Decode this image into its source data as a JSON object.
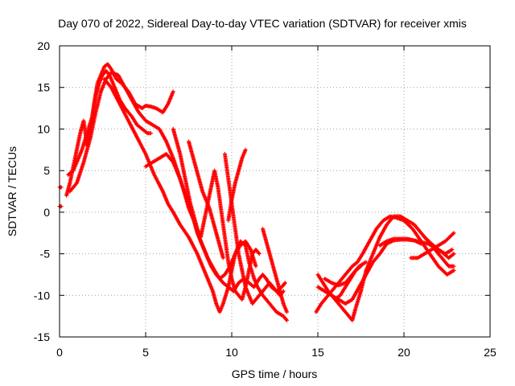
{
  "chart_data": {
    "type": "scatter",
    "title": "Day 070 of 2022, Sidereal Day-to-day VTEC variation (SDTVAR) for receiver xmis",
    "xlabel": "GPS time / hours",
    "ylabel": "SDTVAR / TECUs",
    "xlim": [
      0,
      25
    ],
    "ylim": [
      -15,
      20
    ],
    "xticks": [
      0,
      5,
      10,
      15,
      20,
      25
    ],
    "yticks": [
      -15,
      -10,
      -5,
      0,
      5,
      10,
      15,
      20
    ],
    "grid": true,
    "marker": "+",
    "color": "#ff0000",
    "series": [
      {
        "x": [
          0.0,
          0.1
        ],
        "y": [
          3.0,
          3.0
        ]
      },
      {
        "x": [
          0.0,
          0.1
        ],
        "y": [
          0.7,
          0.7
        ]
      },
      {
        "x": [
          0.4,
          0.6,
          0.8,
          1.0,
          1.2,
          1.4,
          1.6,
          1.8,
          2.0,
          2.2,
          2.4,
          2.6,
          2.8,
          3.0,
          3.3,
          3.6,
          4.0,
          4.4,
          4.8,
          5.0,
          5.3,
          5.6,
          6.0,
          6.3,
          6.6
        ],
        "y": [
          2.0,
          3.5,
          5.5,
          7.5,
          9.5,
          11.0,
          8.0,
          10.0,
          13.0,
          15.5,
          16.5,
          17.5,
          17.8,
          17.2,
          16.0,
          15.5,
          14.5,
          13.0,
          12.5,
          12.8,
          12.7,
          12.5,
          12.0,
          13.0,
          14.5
        ]
      },
      {
        "x": [
          0.5,
          0.8,
          1.0,
          1.3,
          1.6,
          1.9,
          2.1,
          2.3,
          2.5,
          2.7,
          2.9,
          3.2,
          3.5,
          3.8,
          4.2,
          4.5,
          4.8,
          5.1,
          5.3
        ],
        "y": [
          4.5,
          5.0,
          6.0,
          7.5,
          9.5,
          11.5,
          14.0,
          15.5,
          16.5,
          17.0,
          16.5,
          15.0,
          13.5,
          12.5,
          11.5,
          10.5,
          10.0,
          9.5,
          9.5
        ]
      },
      {
        "x": [
          0.6,
          1.0,
          1.4,
          1.8,
          2.1,
          2.4,
          2.7,
          3.0,
          3.4,
          3.8,
          4.2,
          4.6,
          5.0,
          5.4,
          5.8,
          6.2,
          6.6,
          7.0,
          7.3,
          7.5,
          7.8,
          8.0,
          8.3,
          8.6,
          9.0,
          9.3,
          9.5,
          9.8,
          10.1,
          10.4,
          10.7,
          11.0,
          11.3,
          11.6,
          11.8,
          12.0,
          12.3,
          12.6,
          12.9,
          13.1
        ],
        "y": [
          2.5,
          3.5,
          6.0,
          9.0,
          12.0,
          14.5,
          16.0,
          16.8,
          16.5,
          15.0,
          13.5,
          12.0,
          11.0,
          10.5,
          10.0,
          8.5,
          6.5,
          4.0,
          2.0,
          0.5,
          -1.0,
          -2.5,
          -4.0,
          -5.5,
          -7.0,
          -8.0,
          -8.5,
          -9.0,
          -9.5,
          -8.5,
          -8.0,
          -8.5,
          -9.0,
          -8.0,
          -7.5,
          -8.0,
          -9.0,
          -9.5,
          -9.0,
          -8.5
        ]
      },
      {
        "x": [
          2.6,
          3.0,
          3.5,
          4.0,
          4.5,
          5.0,
          5.5,
          6.0,
          6.3,
          6.6,
          7.0,
          7.5,
          8.0,
          8.3,
          8.6,
          8.9,
          9.1,
          9.3,
          9.5,
          9.8,
          10.0,
          10.2,
          10.5,
          10.8,
          11.0,
          11.3,
          11.5,
          11.8,
          12.2,
          12.6,
          13.0,
          13.2
        ],
        "y": [
          16.0,
          15.0,
          13.0,
          11.0,
          9.0,
          7.0,
          4.5,
          2.5,
          1.0,
          0.0,
          -1.5,
          -3.0,
          -5.0,
          -6.5,
          -8.0,
          -9.5,
          -11.0,
          -12.0,
          -11.0,
          -9.0,
          -7.0,
          -5.0,
          -3.5,
          -4.0,
          -6.0,
          -8.0,
          -9.0,
          -10.0,
          -11.0,
          -12.0,
          -12.5,
          -13.0
        ]
      },
      {
        "x": [
          5.0,
          5.4,
          5.8,
          6.2,
          6.6,
          7.0,
          7.4,
          7.8,
          8.2,
          8.5,
          8.8,
          9.1,
          9.3,
          9.6,
          9.9,
          10.2,
          10.5,
          10.8,
          11.1,
          11.4
        ],
        "y": [
          5.5,
          6.0,
          6.5,
          7.0,
          6.0,
          4.0,
          1.5,
          -1.0,
          -3.5,
          -5.0,
          -6.5,
          -7.5,
          -8.0,
          -7.5,
          -6.5,
          -5.0,
          -4.0,
          -3.5,
          -4.5,
          -6.5
        ]
      },
      {
        "x": [
          6.6,
          6.8,
          7.0,
          7.2,
          7.4,
          7.6,
          7.8,
          8.0,
          8.2,
          8.4,
          8.6,
          8.8,
          9.0,
          9.2,
          9.4,
          9.6,
          9.8,
          10.0,
          10.2,
          10.4,
          10.6,
          10.8,
          11.0,
          11.2,
          11.4,
          11.6
        ],
        "y": [
          10.0,
          8.5,
          7.0,
          5.0,
          3.0,
          1.0,
          -0.5,
          -2.0,
          -3.0,
          -1.0,
          1.0,
          3.0,
          5.0,
          3.0,
          0.0,
          -3.0,
          -6.0,
          -8.0,
          -9.5,
          -10.0,
          -10.5,
          -9.0,
          -7.0,
          -5.0,
          -4.5,
          -5.0
        ]
      },
      {
        "x": [
          7.5,
          7.7,
          7.9,
          8.1,
          8.3,
          8.5,
          8.7,
          8.9,
          9.1,
          9.3,
          9.5
        ],
        "y": [
          8.5,
          7.0,
          5.5,
          4.0,
          2.5,
          1.5,
          0.5,
          -1.0,
          -2.5,
          -4.0,
          -5.5
        ]
      },
      {
        "x": [
          9.6,
          9.8,
          10.0,
          10.2,
          10.4,
          10.6,
          10.8,
          11.0,
          11.2,
          11.4,
          11.6,
          11.8,
          12.0,
          12.2,
          12.4,
          12.6,
          12.8,
          13.0
        ],
        "y": [
          7.0,
          4.0,
          1.0,
          -2.0,
          -5.0,
          -7.0,
          -9.0,
          -10.0,
          -11.0,
          -10.5,
          -10.0,
          -9.5,
          -9.0,
          -8.5,
          -9.0,
          -9.5,
          -10.0,
          -9.5
        ]
      },
      {
        "x": [
          9.8,
          10.0,
          10.2,
          10.4,
          10.6,
          10.8
        ],
        "y": [
          -1.0,
          1.5,
          3.5,
          5.0,
          6.5,
          7.5
        ]
      },
      {
        "x": [
          11.8,
          12.0,
          12.2,
          12.4,
          12.6,
          12.8,
          13.0,
          13.2
        ],
        "y": [
          -2.0,
          -3.5,
          -5.0,
          -6.5,
          -8.0,
          -9.5,
          -11.0,
          -12.0
        ]
      },
      {
        "x": [
          14.9,
          15.2,
          15.6,
          16.0,
          16.4,
          16.8,
          17.0,
          17.3,
          17.6,
          18.0,
          18.4,
          18.8,
          19.2,
          19.6,
          20.0,
          20.5,
          21.0,
          21.5,
          22.0,
          22.5,
          22.9
        ],
        "y": [
          -12.0,
          -11.0,
          -10.0,
          -9.0,
          -8.0,
          -7.0,
          -6.5,
          -6.0,
          -5.0,
          -3.5,
          -2.0,
          -1.0,
          -0.5,
          -0.7,
          -1.0,
          -2.0,
          -3.5,
          -5.0,
          -6.5,
          -7.5,
          -7.0
        ]
      },
      {
        "x": [
          15.0,
          15.3,
          15.6,
          16.0,
          16.4,
          16.8,
          17.0,
          17.2,
          17.5,
          17.8,
          18.2,
          18.6,
          19.0,
          19.4,
          19.8,
          20.2,
          20.6,
          21.0,
          21.4,
          21.8,
          22.2,
          22.6,
          22.9
        ],
        "y": [
          -7.5,
          -8.5,
          -9.5,
          -10.5,
          -11.5,
          -12.5,
          -13.0,
          -11.5,
          -9.5,
          -7.0,
          -5.0,
          -3.0,
          -1.5,
          -0.5,
          -0.5,
          -1.0,
          -1.5,
          -2.5,
          -3.5,
          -4.5,
          -5.5,
          -6.5,
          -6.5
        ]
      },
      {
        "x": [
          15.0,
          15.4,
          15.8,
          16.2,
          16.6,
          17.0,
          17.4,
          17.8,
          18.2,
          18.6,
          19.0,
          19.4,
          19.8,
          20.2,
          20.6,
          21.0,
          21.4,
          21.8,
          22.2,
          22.6,
          22.9
        ],
        "y": [
          -9.0,
          -9.5,
          -10.0,
          -10.5,
          -11.0,
          -10.5,
          -9.0,
          -7.5,
          -6.0,
          -5.0,
          -3.8,
          -3.4,
          -3.3,
          -3.3,
          -3.4,
          -3.6,
          -3.8,
          -4.2,
          -4.8,
          -5.5,
          -5.0
        ]
      },
      {
        "x": [
          15.4,
          15.8,
          16.2,
          16.6,
          17.0,
          17.4,
          17.8
        ],
        "y": [
          -8.0,
          -8.5,
          -8.8,
          -8.5,
          -7.5,
          -6.5,
          -6.0
        ]
      },
      {
        "x": [
          16.0,
          16.3,
          16.6,
          16.9,
          17.2,
          17.5
        ],
        "y": [
          -10.5,
          -10.0,
          -9.0,
          -8.0,
          -7.0,
          -6.5
        ]
      },
      {
        "x": [
          18.6,
          19.0,
          19.4,
          19.8,
          20.2,
          20.6,
          21.0
        ],
        "y": [
          -4.0,
          -3.5,
          -3.2,
          -3.2,
          -3.2,
          -3.4,
          -3.8
        ]
      },
      {
        "x": [
          20.4,
          20.8,
          21.2,
          21.6,
          22.0,
          22.4,
          22.9
        ],
        "y": [
          -5.5,
          -5.5,
          -5.0,
          -4.5,
          -4.0,
          -3.5,
          -2.5
        ]
      },
      {
        "x": [
          21.2,
          21.6,
          22.0,
          22.4,
          22.8
        ],
        "y": [
          -3.0,
          -3.8,
          -4.5,
          -5.0,
          -4.5
        ]
      }
    ]
  }
}
